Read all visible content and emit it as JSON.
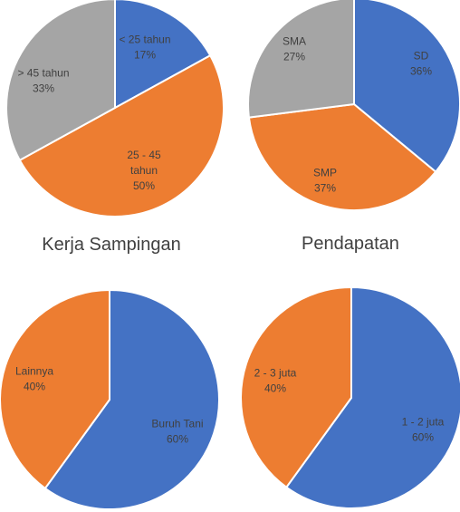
{
  "chart_data": [
    {
      "type": "pie",
      "title": "",
      "colors": [
        "#4472C4",
        "#ED7D31",
        "#A5A5A5"
      ],
      "slices": [
        {
          "label": "< 25 tahun",
          "value": 17,
          "value_label": "17%"
        },
        {
          "label": "25 - 45 tahun",
          "label_lines": [
            "25 - 45",
            "tahun"
          ],
          "value": 50,
          "value_label": "50%"
        },
        {
          "label": "> 45 tahun",
          "value": 33,
          "value_label": "33%"
        }
      ]
    },
    {
      "type": "pie",
      "title": "",
      "colors": [
        "#4472C4",
        "#ED7D31",
        "#A5A5A5"
      ],
      "slices": [
        {
          "label": "SD",
          "value": 36,
          "value_label": "36%"
        },
        {
          "label": "SMP",
          "value": 37,
          "value_label": "37%"
        },
        {
          "label": "SMA",
          "value": 27,
          "value_label": "27%"
        }
      ]
    },
    {
      "type": "pie",
      "title": "Kerja Sampingan",
      "colors": [
        "#4472C4",
        "#ED7D31"
      ],
      "slices": [
        {
          "label": "Buruh Tani",
          "value": 60,
          "value_label": "60%"
        },
        {
          "label": "Lainnya",
          "value": 40,
          "value_label": "40%"
        }
      ]
    },
    {
      "type": "pie",
      "title": "Pendapatan",
      "colors": [
        "#4472C4",
        "#ED7D31"
      ],
      "slices": [
        {
          "label": "1 - 2 juta",
          "value": 60,
          "value_label": "60%"
        },
        {
          "label": "2 - 3 juta",
          "value": 40,
          "value_label": "40%"
        }
      ]
    }
  ]
}
